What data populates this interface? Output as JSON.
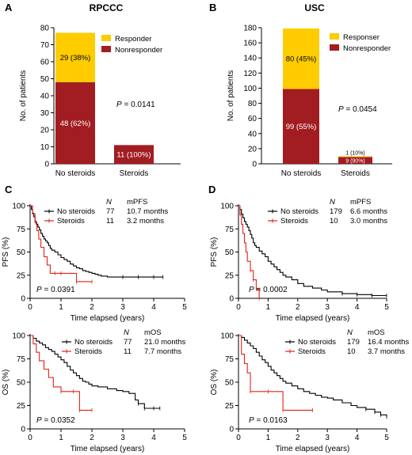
{
  "colors": {
    "responder": "#FFCC00",
    "nonresponder": "#A11D22",
    "no_steroids": "#000000",
    "steroids": "#E2231A",
    "text_on_bar": "#ffffff"
  },
  "chart_data": [
    {
      "id": "A",
      "panel_letter": "A",
      "type": "bar",
      "title": "RPCCC",
      "categories": [
        "No steroids",
        "Steroids"
      ],
      "series": [
        {
          "name": "Nonresponder",
          "values": [
            48,
            11
          ],
          "labels": [
            "48 (62%)",
            "11 (100%)"
          ]
        },
        {
          "name": "Responder",
          "values": [
            29,
            0
          ],
          "labels": [
            "29 (38%)",
            ""
          ]
        }
      ],
      "ylabel": "No. of patients",
      "xlabel": "",
      "ylim": [
        0,
        80
      ],
      "yticks": [
        "0",
        "10",
        "20",
        "30",
        "40",
        "50",
        "60",
        "70",
        "80"
      ],
      "legend": [
        "Responder",
        "Nonresponder"
      ],
      "legend_position": "top-right",
      "annotation": {
        "prefix": "P",
        "value": " = 0.0141"
      }
    },
    {
      "id": "B",
      "panel_letter": "B",
      "type": "bar",
      "title": "USC",
      "categories": [
        "No steroids",
        "Steroids"
      ],
      "series": [
        {
          "name": "Nonresponder",
          "values": [
            99,
            9
          ],
          "labels": [
            "99 (55%)",
            "9 (90%)"
          ]
        },
        {
          "name": "Responser",
          "values": [
            80,
            1
          ],
          "labels": [
            "80 (45%)",
            "1 (10%)"
          ]
        }
      ],
      "ylabel": "No. of patients",
      "xlabel": "",
      "ylim": [
        0,
        180
      ],
      "yticks": [
        "0",
        "20",
        "40",
        "60",
        "80",
        "100",
        "120",
        "140",
        "160",
        "180"
      ],
      "legend": [
        "Responser",
        "Nonresponder"
      ],
      "legend_position": "top-right",
      "annotation": {
        "prefix": "P",
        "value": " = 0.0454"
      }
    },
    {
      "id": "C_top",
      "panel_letter": "C",
      "type": "line",
      "xlabel": "Time elapsed (years)",
      "ylabel": "PFS (%)",
      "xlim": [
        0,
        5
      ],
      "ylim": [
        0,
        100
      ],
      "xticks": [
        "0",
        "1",
        "2",
        "3",
        "4",
        "5"
      ],
      "yticks": [
        "0",
        "25",
        "50",
        "75",
        "100"
      ],
      "legend_header": {
        "n": "N",
        "stat": "mPFS"
      },
      "legend_rows": [
        {
          "series": "No steroids",
          "n": "77",
          "stat": "10.7 months"
        },
        {
          "series": "Steroids",
          "n": "11",
          "stat": "3.2 months"
        }
      ],
      "annotation": {
        "prefix": "P",
        "value": " = 0.0391"
      },
      "series": [
        {
          "name": "No steroids",
          "x": [
            0,
            0.04,
            0.08,
            0.12,
            0.16,
            0.2,
            0.25,
            0.3,
            0.35,
            0.4,
            0.45,
            0.5,
            0.55,
            0.6,
            0.65,
            0.7,
            0.8,
            0.9,
            1.0,
            1.1,
            1.2,
            1.3,
            1.4,
            1.5,
            1.6,
            1.7,
            1.8,
            1.9,
            2.0,
            2.1,
            2.2,
            2.3,
            2.4,
            2.5,
            2.6,
            3.0,
            3.5,
            4.0,
            4.3
          ],
          "y": [
            100,
            96,
            92,
            88,
            83,
            80,
            77,
            74,
            70,
            67,
            64,
            62,
            60,
            57,
            54,
            52,
            50,
            47,
            44,
            42,
            40,
            37,
            35,
            33,
            32,
            30,
            29,
            28,
            27,
            26,
            25,
            24,
            24,
            23,
            23,
            23,
            23,
            23,
            23
          ]
        },
        {
          "name": "Steroids",
          "x": [
            0,
            0.08,
            0.16,
            0.22,
            0.28,
            0.35,
            0.45,
            0.55,
            0.65,
            0.8,
            1.0,
            1.5,
            2.0
          ],
          "y": [
            100,
            91,
            82,
            73,
            64,
            55,
            45,
            36,
            27,
            27,
            27,
            18,
            18
          ]
        }
      ]
    },
    {
      "id": "C_bottom",
      "panel_letter": "",
      "type": "line",
      "xlabel": "Time elapsed (years)",
      "ylabel": "OS (%)",
      "xlim": [
        0,
        5
      ],
      "ylim": [
        0,
        100
      ],
      "xticks": [
        "0",
        "1",
        "2",
        "3",
        "4",
        "5"
      ],
      "yticks": [
        "0",
        "25",
        "50",
        "75",
        "100"
      ],
      "legend_header": {
        "n": "N",
        "stat": "mOS"
      },
      "legend_rows": [
        {
          "series": "No steroids",
          "n": "77",
          "stat": "21.0 months"
        },
        {
          "series": "Steroids",
          "n": "11",
          "stat": "7.7 months"
        }
      ],
      "annotation": {
        "prefix": "P",
        "value": " = 0.0352"
      },
      "series": [
        {
          "name": "No steroids",
          "x": [
            0,
            0.1,
            0.2,
            0.3,
            0.4,
            0.5,
            0.6,
            0.7,
            0.8,
            0.9,
            1.0,
            1.1,
            1.2,
            1.3,
            1.4,
            1.5,
            1.6,
            1.7,
            1.8,
            1.9,
            2.0,
            2.2,
            2.5,
            2.8,
            3.0,
            3.2,
            3.4,
            3.5,
            3.7,
            4.0,
            4.2
          ],
          "y": [
            100,
            97,
            94,
            92,
            90,
            87,
            85,
            83,
            80,
            77,
            74,
            71,
            67,
            63,
            60,
            57,
            54,
            51,
            50,
            48,
            46,
            45,
            43,
            41,
            40,
            38,
            31,
            27,
            22,
            22,
            22
          ]
        },
        {
          "name": "Steroids",
          "x": [
            0,
            0.1,
            0.2,
            0.3,
            0.45,
            0.6,
            0.75,
            1.0,
            1.4,
            1.6,
            2.0
          ],
          "y": [
            100,
            91,
            82,
            73,
            64,
            55,
            45,
            40,
            40,
            20,
            20
          ]
        }
      ]
    },
    {
      "id": "D_top",
      "panel_letter": "D",
      "type": "line",
      "xlabel": "Time elapsed (years)",
      "ylabel": "PFS (%)",
      "xlim": [
        0,
        5
      ],
      "ylim": [
        0,
        100
      ],
      "xticks": [
        "0",
        "1",
        "2",
        "3",
        "4",
        "5"
      ],
      "yticks": [
        "0",
        "25",
        "50",
        "75",
        "100"
      ],
      "legend_header": {
        "n": "N",
        "stat": "mPFS"
      },
      "legend_rows": [
        {
          "series": "No steroids",
          "n": "179",
          "stat": "6.6 months"
        },
        {
          "series": "Steroids",
          "n": "10",
          "stat": "3.0 months"
        }
      ],
      "annotation": {
        "prefix": "P",
        "value": " = 0.0002"
      },
      "series": [
        {
          "name": "No steroids",
          "x": [
            0,
            0.05,
            0.1,
            0.15,
            0.2,
            0.25,
            0.3,
            0.35,
            0.4,
            0.45,
            0.5,
            0.55,
            0.6,
            0.7,
            0.8,
            0.9,
            1.0,
            1.1,
            1.2,
            1.3,
            1.4,
            1.5,
            1.6,
            1.8,
            2.0,
            2.2,
            2.5,
            2.8,
            3.0,
            3.5,
            4.0,
            4.5,
            5.0
          ],
          "y": [
            100,
            96,
            91,
            87,
            83,
            80,
            77,
            73,
            69,
            65,
            60,
            57,
            55,
            51,
            48,
            45,
            40,
            37,
            34,
            31,
            28,
            25,
            23,
            20,
            16,
            13,
            11,
            9,
            7,
            5,
            4,
            3,
            3
          ]
        },
        {
          "name": "Steroids",
          "x": [
            0,
            0.05,
            0.1,
            0.15,
            0.2,
            0.25,
            0.3,
            0.4,
            0.5,
            0.6,
            0.7
          ],
          "y": [
            100,
            90,
            80,
            70,
            60,
            50,
            40,
            30,
            20,
            10,
            0
          ]
        }
      ]
    },
    {
      "id": "D_bottom",
      "panel_letter": "",
      "type": "line",
      "xlabel": "Time elapsed (years)",
      "ylabel": "OS (%)",
      "xlim": [
        0,
        5
      ],
      "ylim": [
        0,
        100
      ],
      "xticks": [
        "0",
        "1",
        "2",
        "3",
        "4",
        "5"
      ],
      "yticks": [
        "0",
        "25",
        "50",
        "75",
        "100"
      ],
      "legend_header": {
        "n": "N",
        "stat": "mOS"
      },
      "legend_rows": [
        {
          "series": "No steroids",
          "n": "179",
          "stat": "16.4 months"
        },
        {
          "series": "Steroids",
          "n": "10",
          "stat": "3.7 months"
        }
      ],
      "annotation": {
        "prefix": "P",
        "value": " = 0.0163"
      },
      "series": [
        {
          "name": "No steroids",
          "x": [
            0,
            0.1,
            0.2,
            0.3,
            0.4,
            0.5,
            0.6,
            0.7,
            0.8,
            0.9,
            1.0,
            1.1,
            1.2,
            1.3,
            1.4,
            1.5,
            1.6,
            1.8,
            2.0,
            2.2,
            2.4,
            2.6,
            2.8,
            3.0,
            3.2,
            3.5,
            3.8,
            4.0,
            4.3,
            4.6,
            4.8,
            5.0
          ],
          "y": [
            100,
            98,
            95,
            92,
            89,
            86,
            82,
            78,
            74,
            71,
            67,
            63,
            60,
            57,
            54,
            51,
            49,
            46,
            43,
            40,
            38,
            36,
            34,
            33,
            31,
            28,
            25,
            23,
            21,
            18,
            15,
            13
          ]
        },
        {
          "name": "Steroids",
          "x": [
            0,
            0.1,
            0.2,
            0.3,
            0.4,
            1.0,
            1.5,
            2.5
          ],
          "y": [
            100,
            80,
            70,
            60,
            40,
            40,
            20,
            20
          ]
        }
      ]
    }
  ]
}
